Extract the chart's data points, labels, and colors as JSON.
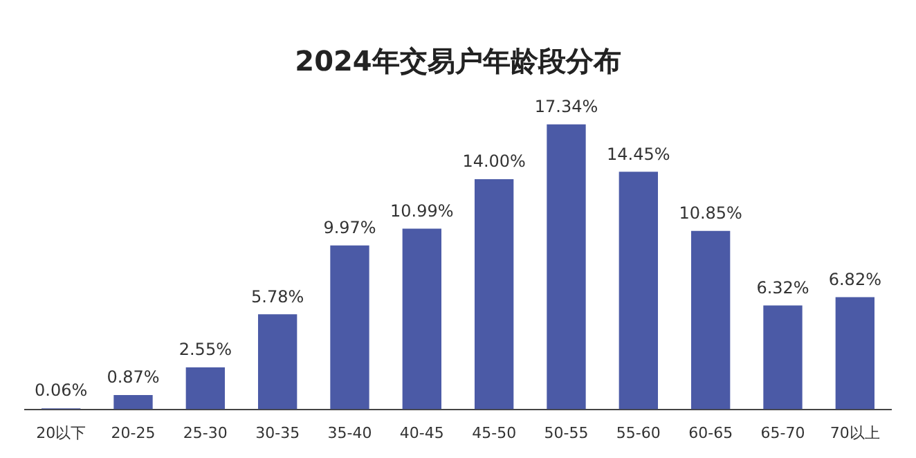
{
  "chart_data": {
    "type": "bar",
    "title": "2024年交易户年龄段分布",
    "categories": [
      "20以下",
      "20-25",
      "25-30",
      "30-35",
      "35-40",
      "40-45",
      "45-50",
      "50-55",
      "55-60",
      "60-65",
      "65-70",
      "70以上"
    ],
    "values": [
      0.06,
      0.87,
      2.55,
      5.78,
      9.97,
      10.99,
      14.0,
      17.34,
      14.45,
      10.85,
      6.32,
      6.82
    ],
    "value_labels": [
      "0.06%",
      "0.87%",
      "2.55%",
      "5.78%",
      "9.97%",
      "10.99%",
      "14.00%",
      "17.34%",
      "14.45%",
      "10.85%",
      "6.32%",
      "6.82%"
    ],
    "color": "#4b5aa6",
    "grid": false,
    "legend": false,
    "tick_labels": "x"
  }
}
